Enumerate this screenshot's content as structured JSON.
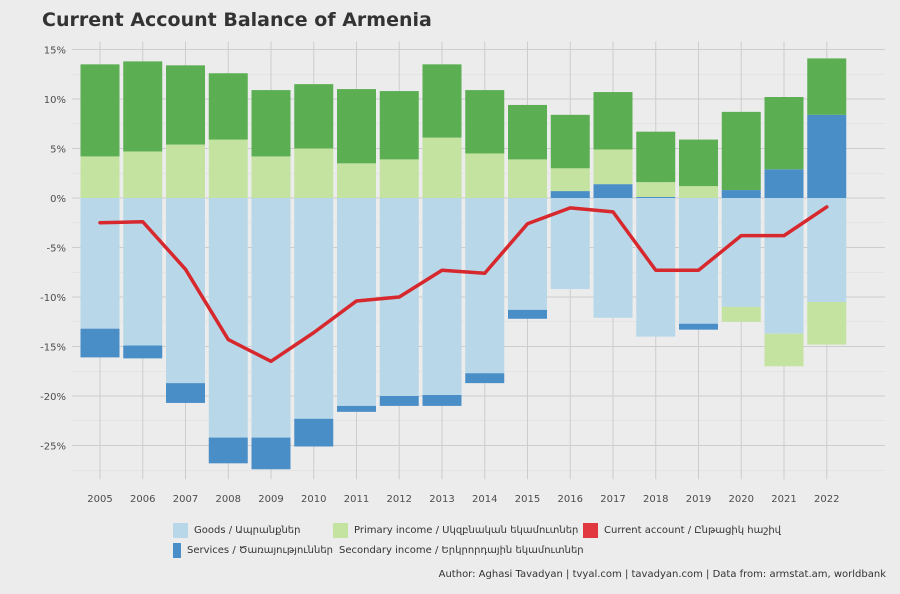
{
  "chart_data": {
    "type": "bar",
    "title": "Current Account Balance of Armenia",
    "xlabel": "",
    "ylabel": "",
    "ylim": [
      -28,
      15.5
    ],
    "y_ticks": [
      15,
      10,
      5,
      0,
      -5,
      -10,
      -15,
      -20,
      -25
    ],
    "y_tick_labels": [
      "15%",
      "10%",
      "5%",
      "0%",
      "-5%",
      "-10%",
      "-15%",
      "-20%",
      "-25%"
    ],
    "grid": true,
    "legend_position": "bottom",
    "categories": [
      "2005",
      "2006",
      "2007",
      "2008",
      "2009",
      "2010",
      "2011",
      "2012",
      "2013",
      "2014",
      "2015",
      "2016",
      "2017",
      "2018",
      "2019",
      "2020",
      "2021",
      "2022"
    ],
    "series": [
      {
        "name": "Goods / Ապրանքներ",
        "type": "bar",
        "color": "#b8d7e8",
        "values": [
          -13.2,
          -14.9,
          -18.7,
          -24.2,
          -24.2,
          -22.3,
          -21.0,
          -20.0,
          -19.9,
          -17.7,
          -11.3,
          -9.2,
          -12.1,
          -14.0,
          -12.7,
          -11.0,
          -13.7,
          -10.5
        ]
      },
      {
        "name": "Services / Ծառայություններ",
        "type": "bar",
        "color": "#4a8ec7",
        "values": [
          -2.9,
          -1.3,
          -2.0,
          -2.6,
          -3.2,
          -2.8,
          -0.6,
          -1.0,
          -1.1,
          -1.0,
          -0.9,
          0.7,
          1.4,
          0.1,
          -0.6,
          0.8,
          2.9,
          8.4
        ]
      },
      {
        "name": "Primary income / Սկզբնական եկամուտներ",
        "type": "bar",
        "color": "#c4e3a0",
        "values": [
          4.2,
          4.7,
          5.4,
          5.9,
          4.2,
          5.0,
          3.5,
          3.9,
          6.1,
          4.5,
          3.9,
          2.3,
          3.5,
          1.5,
          1.2,
          -1.5,
          -3.3,
          -4.3
        ]
      },
      {
        "name": "Secondary income / Երկրորդային եկամուտներ",
        "type": "bar",
        "color": "#5bae52",
        "values": [
          9.3,
          9.1,
          8.0,
          6.7,
          6.7,
          6.5,
          7.5,
          6.9,
          7.4,
          6.4,
          5.5,
          5.4,
          5.8,
          5.1,
          4.7,
          7.9,
          7.3,
          5.7
        ]
      },
      {
        "name": "Current account / Ընթացիկ հաշիվ",
        "type": "line",
        "color": "#d7282e",
        "values": [
          -2.5,
          -2.4,
          -7.2,
          -14.3,
          -16.5,
          -13.6,
          -10.4,
          -10.0,
          -7.3,
          -7.6,
          -2.6,
          -1.0,
          -1.4,
          -7.3,
          -7.3,
          -3.8,
          -3.8,
          -0.9
        ]
      }
    ]
  },
  "legend": [
    {
      "label": "Goods / Ապրանքներ",
      "color": "#b8d7e8"
    },
    {
      "label": "Primary income / Սկզբնական եկամուտներ",
      "color": "#c4e3a0"
    },
    {
      "label": "Current account / Ընթացիկ հաշիվ",
      "color": "#e0383e"
    },
    {
      "label": "Services / Ծառայություններ",
      "color": "#4a8ec7"
    },
    {
      "label": "Secondary income / Երկրորդային եկամուտներ",
      "color": "#5bae52"
    }
  ],
  "caption": "Author: Aghasi Tavadyan   |   tvyal.com   |   tavadyan.com    |   Data from: armstat.am, worldbank"
}
